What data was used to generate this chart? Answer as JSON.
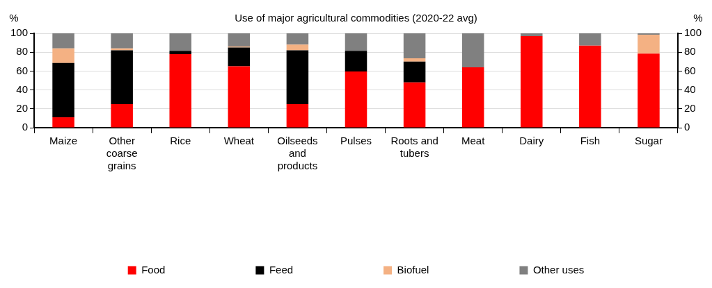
{
  "chart_data": {
    "type": "bar",
    "title": "Use of major agricultural commodities (2020-22 avg)",
    "ylabel": "%",
    "y2label": "%",
    "categories": [
      "Maize",
      "Other coarse grains",
      "Rice",
      "Wheat",
      "Oilseeds and products",
      "Pulses",
      "Roots and tubers",
      "Meat",
      "Dairy",
      "Fish",
      "Sugar"
    ],
    "stacked": true,
    "ylim": [
      0,
      100
    ],
    "yticks": [
      0,
      20,
      40,
      60,
      80,
      100
    ],
    "y2lim": [
      0,
      100
    ],
    "y2ticks": [
      0,
      20,
      40,
      60,
      80,
      100
    ],
    "grid": "y",
    "legend": "bottom",
    "series": [
      {
        "name": "Food",
        "color": "#ff0000",
        "values": [
          11,
          25,
          78,
          65,
          25,
          59.5,
          48,
          64,
          97,
          87,
          78.5
        ]
      },
      {
        "name": "Feed",
        "color": "#000000",
        "values": [
          57.5,
          57,
          3.5,
          20,
          57,
          22,
          22,
          0,
          0,
          0,
          0
        ]
      },
      {
        "name": "Biofuel",
        "color": "#f4b183",
        "values": [
          15.5,
          2,
          0,
          1,
          6,
          0,
          3.5,
          0,
          0,
          0,
          20
        ]
      },
      {
        "name": "Other uses",
        "color": "#808080",
        "values": [
          16,
          16,
          18.5,
          14,
          12,
          18.5,
          26.5,
          36,
          3,
          13,
          1.5
        ]
      }
    ]
  }
}
